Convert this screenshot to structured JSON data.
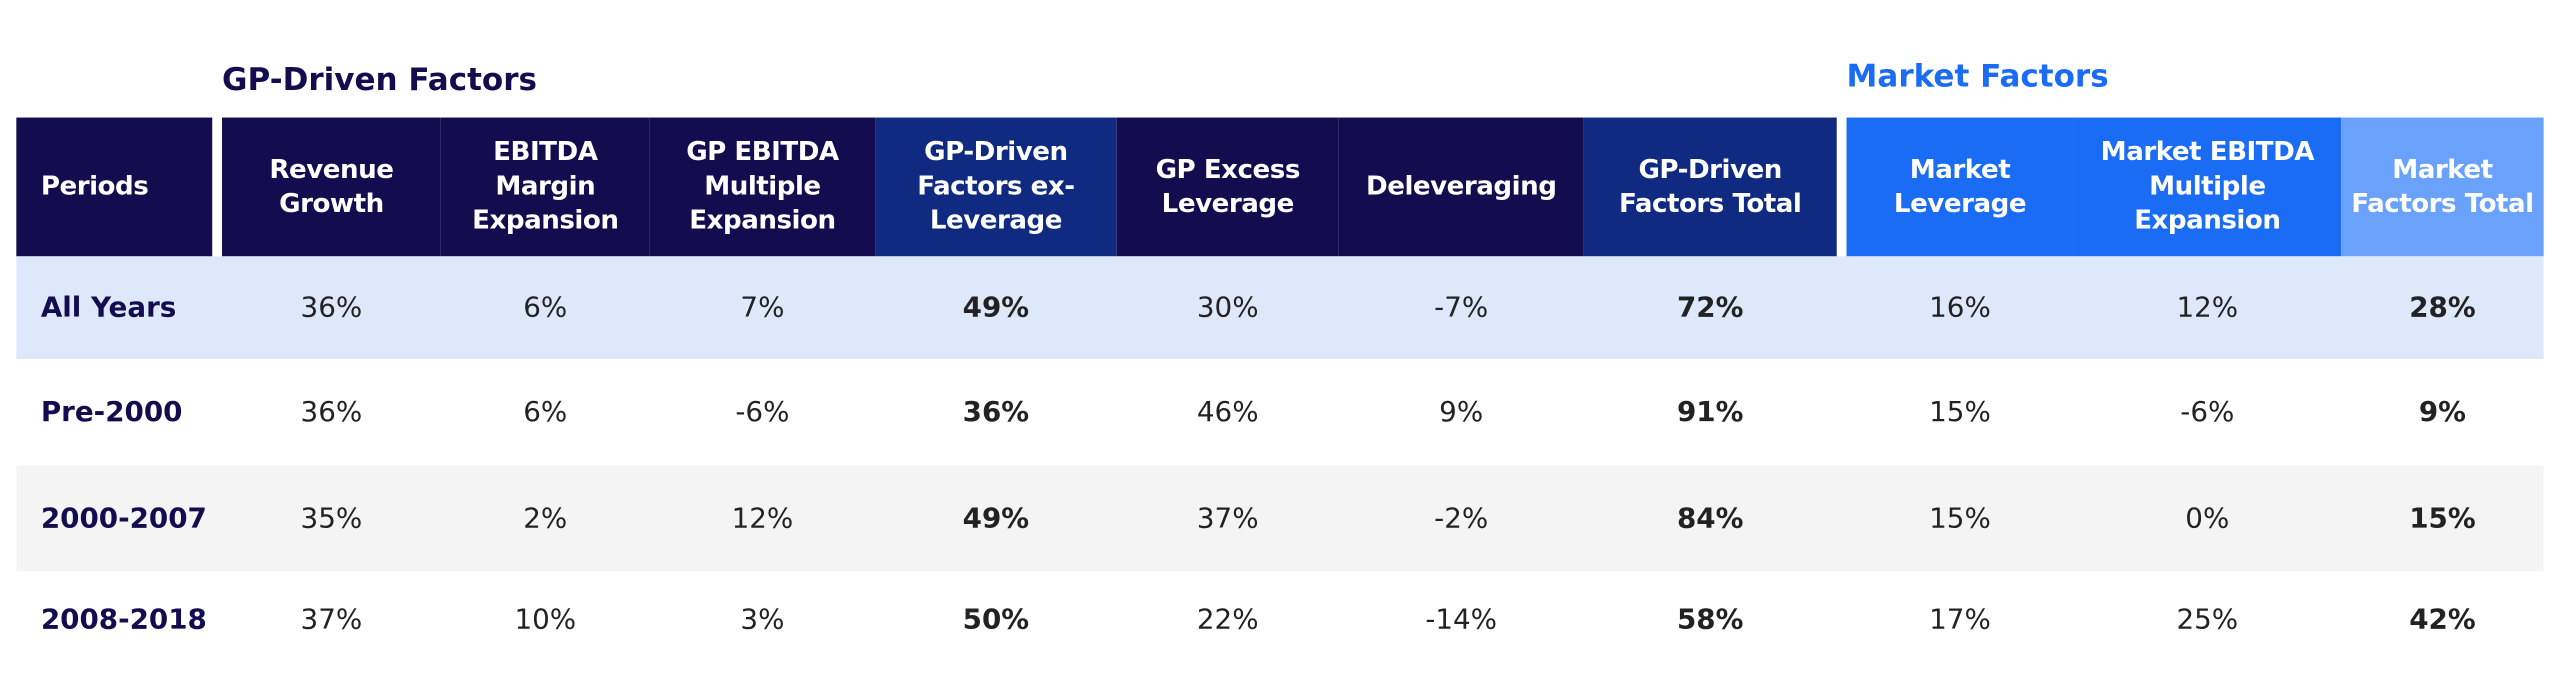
{
  "sections": [
    {
      "title": "GP-Driven Factors"
    },
    {
      "title": "Market Factors"
    }
  ],
  "table": {
    "header": [
      "Periods",
      "Revenue Growth",
      "EBITDA Margin Expansion",
      "GP EBITDA Multiple Expansion",
      "GP-Driven Factors ex-Leverage",
      "GP Excess Leverage",
      "Deleveraging",
      "GP-Driven Factors Total",
      "Market Leverage",
      "Market EBITDA Multiple Expansion",
      "Market Factors Total"
    ],
    "rows": [
      [
        "All Years",
        "36%",
        "6%",
        "7%",
        "49%",
        "30%",
        "-7%",
        "72%",
        "16%",
        "12%",
        "28%"
      ],
      [
        "Pre-2000",
        "36%",
        "6%",
        "-6%",
        "36%",
        "46%",
        "9%",
        "91%",
        "15%",
        "-6%",
        "9%"
      ],
      [
        "2000-2007",
        "35%",
        "2%",
        "12%",
        "49%",
        "37%",
        "-2%",
        "84%",
        "15%",
        "0%",
        "15%"
      ],
      [
        "2008-2018",
        "37%",
        "10%",
        "3%",
        "50%",
        "22%",
        "-14%",
        "58%",
        "17%",
        "25%",
        "42%"
      ]
    ]
  }
}
